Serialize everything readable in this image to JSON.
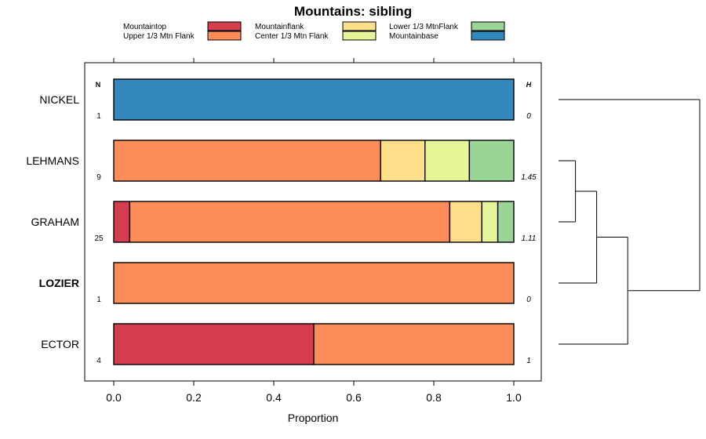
{
  "chart_data": {
    "type": "bar",
    "orientation": "horizontal",
    "stacked": true,
    "title": "Mountains: sibling",
    "xlabel": "Proportion",
    "ylabel": "",
    "xlim": [
      -0.07,
      1.07
    ],
    "x_ticks": [
      0.0,
      0.2,
      0.4,
      0.6,
      0.8,
      1.0
    ],
    "x_tick_labels": [
      "0.0",
      "0.2",
      "0.4",
      "0.6",
      "0.8",
      "1.0"
    ],
    "n_header": "N",
    "h_header": "H",
    "legend_position": "top",
    "series": [
      {
        "name": "Mountaintop",
        "color": "#d53e4f"
      },
      {
        "name": "Upper 1/3 Mtn Flank",
        "color": "#fc8d59"
      },
      {
        "name": "Mountainflank",
        "color": "#fee08b"
      },
      {
        "name": "Center 1/3 Mtn Flank",
        "color": "#e6f598"
      },
      {
        "name": "Lower 1/3 MtnFlank",
        "color": "#99d594"
      },
      {
        "name": "Mountainbase",
        "color": "#3288bd"
      }
    ],
    "rows": [
      {
        "label": "NICKEL",
        "bold": false,
        "n": "1",
        "h": "0",
        "values": [
          0,
          0,
          0,
          0,
          0,
          1
        ]
      },
      {
        "label": "LEHMANS",
        "bold": false,
        "n": "9",
        "h": "1.45",
        "values": [
          0,
          0.667,
          0.111,
          0.111,
          0.111,
          0
        ]
      },
      {
        "label": "GRAHAM",
        "bold": false,
        "n": "25",
        "h": "1.11",
        "values": [
          0.04,
          0.8,
          0.08,
          0.04,
          0.04,
          0
        ]
      },
      {
        "label": "LOZIER",
        "bold": true,
        "n": "1",
        "h": "0",
        "values": [
          0,
          1,
          0,
          0,
          0,
          0
        ]
      },
      {
        "label": "ECTOR",
        "bold": false,
        "n": "4",
        "h": "1",
        "values": [
          0.5,
          0.5,
          0,
          0,
          0,
          0
        ]
      }
    ],
    "dendrogram": {
      "leaves": [
        "NICKEL",
        "LEHMANS",
        "GRAHAM",
        "LOZIER",
        "ECTOR"
      ],
      "merges": [
        {
          "a": "LEHMANS",
          "b": "GRAHAM",
          "height": 0.12
        },
        {
          "a": "LEHMANS+GRAHAM",
          "b": "LOZIER",
          "height": 0.27
        },
        {
          "a": "LEHMANS+GRAHAM+LOZIER",
          "b": "ECTOR",
          "height": 0.49
        },
        {
          "a": "ALL_BUT_NICKEL",
          "b": "NICKEL",
          "height": 1.0
        }
      ]
    }
  }
}
